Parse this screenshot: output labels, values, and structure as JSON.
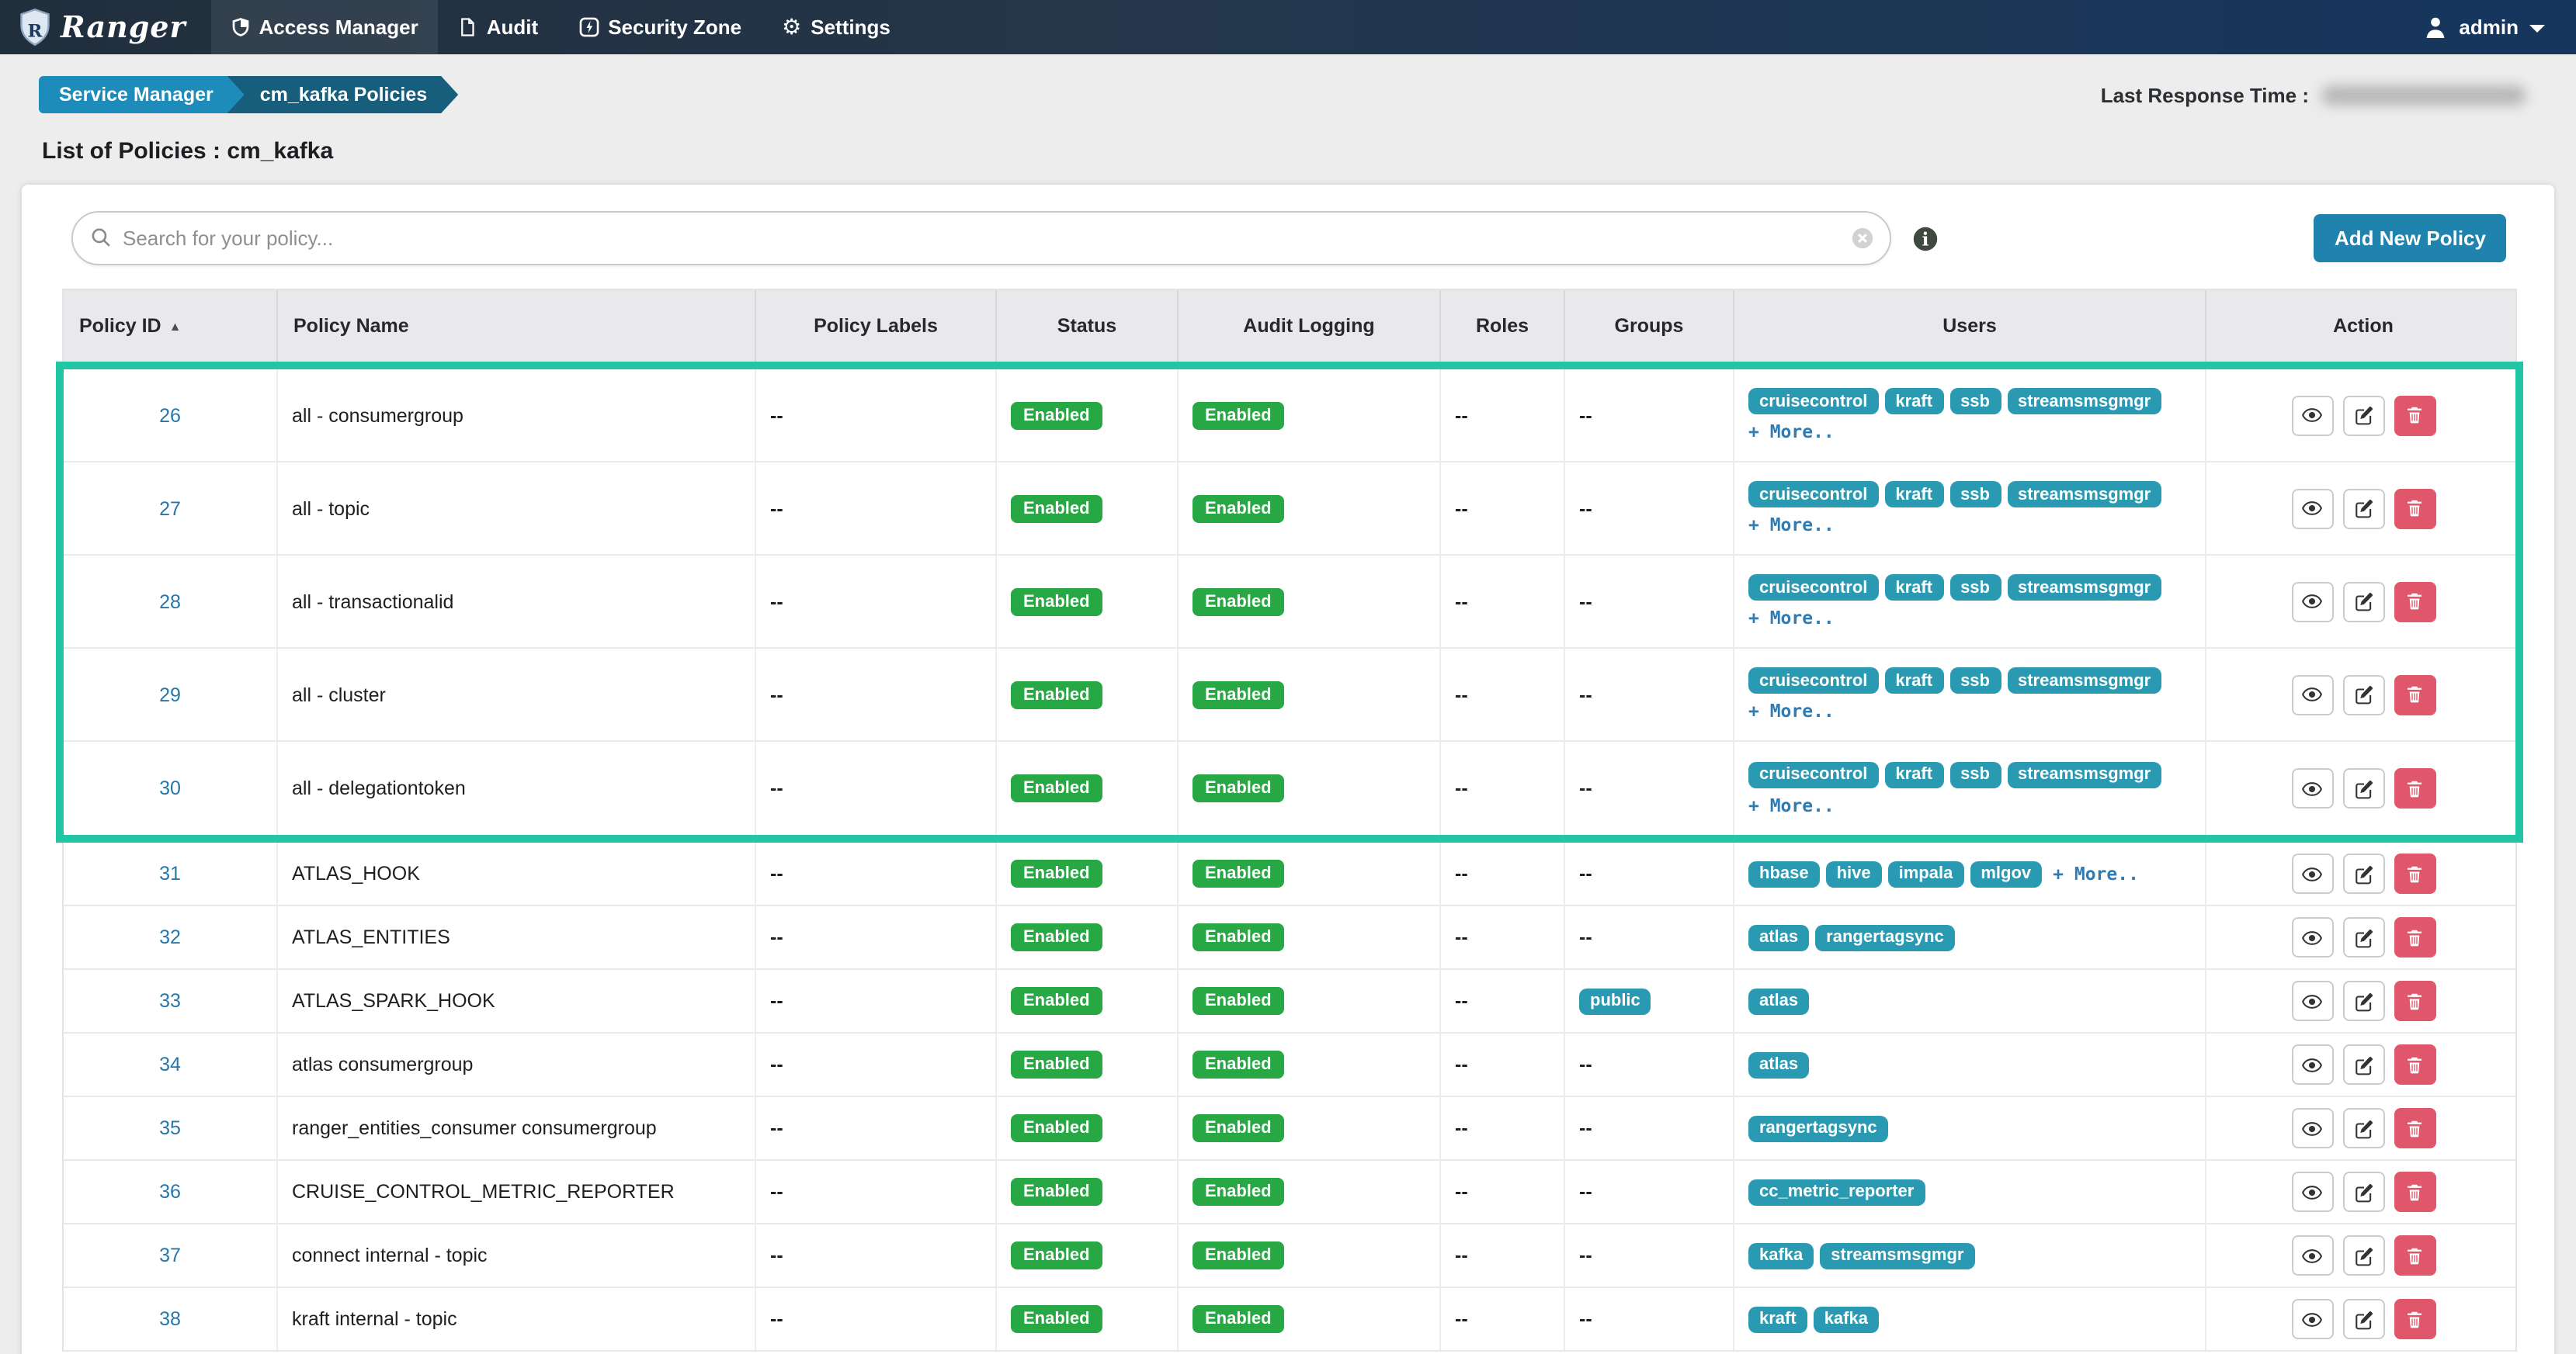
{
  "navbar": {
    "brand": "Ranger",
    "items": [
      {
        "label": "Access Manager",
        "icon": "shield-icon",
        "active": true
      },
      {
        "label": "Audit",
        "icon": "file-icon",
        "active": false
      },
      {
        "label": "Security Zone",
        "icon": "bolt-icon",
        "active": false
      },
      {
        "label": "Settings",
        "icon": "gear-icon",
        "active": false
      }
    ],
    "user": {
      "name": "admin"
    }
  },
  "breadcrumb": {
    "items": [
      "Service Manager",
      "cm_kafka Policies"
    ]
  },
  "meta": {
    "last_response_label": "Last Response Time :"
  },
  "page_title": "List of Policies : cm_kafka",
  "toolbar": {
    "search_placeholder": "Search for your policy...",
    "add_button": "Add New Policy"
  },
  "table": {
    "columns": [
      {
        "label": "Policy ID",
        "sort": "asc"
      },
      {
        "label": "Policy Name"
      },
      {
        "label": "Policy Labels"
      },
      {
        "label": "Status"
      },
      {
        "label": "Audit Logging"
      },
      {
        "label": "Roles"
      },
      {
        "label": "Groups"
      },
      {
        "label": "Users"
      },
      {
        "label": "Action"
      }
    ],
    "more_label": "+ More..",
    "rows": [
      {
        "id": "26",
        "name": "all - consumergroup",
        "labels": "--",
        "status": "Enabled",
        "audit_logging": "Enabled",
        "roles": "--",
        "groups": "--",
        "users": [
          "cruisecontrol",
          "kraft",
          "ssb",
          "streamsmsgmgr"
        ],
        "users_more": "block",
        "highlighted": true
      },
      {
        "id": "27",
        "name": "all - topic",
        "labels": "--",
        "status": "Enabled",
        "audit_logging": "Enabled",
        "roles": "--",
        "groups": "--",
        "users": [
          "cruisecontrol",
          "kraft",
          "ssb",
          "streamsmsgmgr"
        ],
        "users_more": "block",
        "highlighted": true
      },
      {
        "id": "28",
        "name": "all - transactionalid",
        "labels": "--",
        "status": "Enabled",
        "audit_logging": "Enabled",
        "roles": "--",
        "groups": "--",
        "users": [
          "cruisecontrol",
          "kraft",
          "ssb",
          "streamsmsgmgr"
        ],
        "users_more": "block",
        "highlighted": true
      },
      {
        "id": "29",
        "name": "all - cluster",
        "labels": "--",
        "status": "Enabled",
        "audit_logging": "Enabled",
        "roles": "--",
        "groups": "--",
        "users": [
          "cruisecontrol",
          "kraft",
          "ssb",
          "streamsmsgmgr"
        ],
        "users_more": "block",
        "highlighted": true
      },
      {
        "id": "30",
        "name": "all - delegationtoken",
        "labels": "--",
        "status": "Enabled",
        "audit_logging": "Enabled",
        "roles": "--",
        "groups": "--",
        "users": [
          "cruisecontrol",
          "kraft",
          "ssb",
          "streamsmsgmgr"
        ],
        "users_more": "block",
        "highlighted": true
      },
      {
        "id": "31",
        "name": "ATLAS_HOOK",
        "labels": "--",
        "status": "Enabled",
        "audit_logging": "Enabled",
        "roles": "--",
        "groups": "--",
        "users": [
          "hbase",
          "hive",
          "impala",
          "mlgov"
        ],
        "users_more": "inline",
        "highlighted": false
      },
      {
        "id": "32",
        "name": "ATLAS_ENTITIES",
        "labels": "--",
        "status": "Enabled",
        "audit_logging": "Enabled",
        "roles": "--",
        "groups": "--",
        "users": [
          "atlas",
          "rangertagsync"
        ],
        "highlighted": false
      },
      {
        "id": "33",
        "name": "ATLAS_SPARK_HOOK",
        "labels": "--",
        "status": "Enabled",
        "audit_logging": "Enabled",
        "roles": "--",
        "groups": [
          "public"
        ],
        "users": [
          "atlas"
        ],
        "highlighted": false
      },
      {
        "id": "34",
        "name": "atlas consumergroup",
        "labels": "--",
        "status": "Enabled",
        "audit_logging": "Enabled",
        "roles": "--",
        "groups": "--",
        "users": [
          "atlas"
        ],
        "highlighted": false
      },
      {
        "id": "35",
        "name": "ranger_entities_consumer consumergroup",
        "labels": "--",
        "status": "Enabled",
        "audit_logging": "Enabled",
        "roles": "--",
        "groups": "--",
        "users": [
          "rangertagsync"
        ],
        "highlighted": false
      },
      {
        "id": "36",
        "name": "CRUISE_CONTROL_METRIC_REPORTER",
        "labels": "--",
        "status": "Enabled",
        "audit_logging": "Enabled",
        "roles": "--",
        "groups": "--",
        "users": [
          "cc_metric_reporter"
        ],
        "highlighted": false
      },
      {
        "id": "37",
        "name": "connect internal - topic",
        "labels": "--",
        "status": "Enabled",
        "audit_logging": "Enabled",
        "roles": "--",
        "groups": "--",
        "users": [
          "kafka",
          "streamsmsgmgr"
        ],
        "highlighted": false
      },
      {
        "id": "38",
        "name": "kraft internal - topic",
        "labels": "--",
        "status": "Enabled",
        "audit_logging": "Enabled",
        "roles": "--",
        "groups": "--",
        "users": [
          "kraft",
          "kafka"
        ],
        "highlighted": false
      }
    ]
  },
  "colors": {
    "accent": "#2083ad",
    "chip": "#2a9ab2",
    "success": "#28a745",
    "danger": "#e0566b",
    "highlight": "#23c6a4",
    "link": "#2777ab",
    "crumb1": "#1e8cba",
    "crumb2": "#175e7d",
    "nav_left": "#212e3c",
    "nav_right": "#16365e"
  }
}
